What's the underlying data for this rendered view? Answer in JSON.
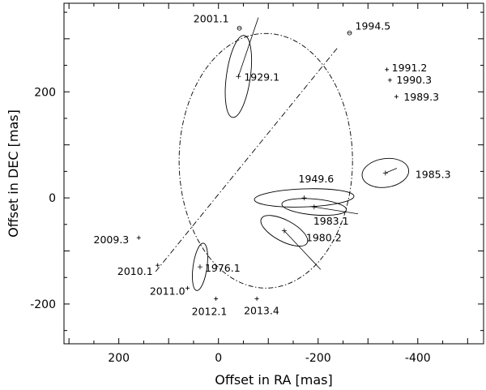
{
  "chart_data": {
    "type": "scatter",
    "title": "",
    "xlabel": "Offset in RA [mas]",
    "ylabel": "Offset in DEC [mas]",
    "xlim": [
      310,
      -532
    ],
    "ylim": [
      -275,
      367
    ],
    "x_reversed": true,
    "grid": false,
    "xticks": [
      200,
      0,
      -200,
      -400
    ],
    "yticks": [
      200,
      0,
      -200
    ],
    "xtick_labels": [
      "200",
      "0",
      "-200",
      "-400"
    ],
    "ytick_labels": [
      "200",
      "0",
      "-200"
    ],
    "orbit": {
      "center": [
        -95,
        70
      ],
      "semi_axes": [
        174,
        240
      ],
      "rotation_deg": 0,
      "style": "dash-dot"
    },
    "line_of_nodes": [
      [
        -238,
        282
      ],
      [
        127,
        -140
      ]
    ],
    "measurements": [
      {
        "label": "1929.1",
        "ra": -40,
        "dec": 229,
        "ellipse": {
          "rx": 24,
          "ry": 78,
          "rot": 8
        },
        "orbit_point": [
          -80,
          340
        ]
      },
      {
        "label": "1949.6",
        "ra": -172,
        "dec": 0,
        "ellipse": {
          "rx": 100,
          "ry": 17,
          "rot": -2
        },
        "orbit_point": [
          -172,
          0
        ]
      },
      {
        "label": "1976.1",
        "ra": 37,
        "dec": -130,
        "ellipse": {
          "rx": 14,
          "ry": 45,
          "rot": 8
        },
        "orbit_point": [
          37,
          -130
        ]
      },
      {
        "label": "1980.2",
        "ra": -132,
        "dec": -62,
        "ellipse": {
          "rx": 52,
          "ry": 20,
          "rot": 28
        },
        "orbit_point": [
          -205,
          -135
        ]
      },
      {
        "label": "1983.1",
        "ra": -192,
        "dec": -17,
        "ellipse": {
          "rx": 65,
          "ry": 15,
          "rot": 5
        },
        "orbit_point": [
          -280,
          -30
        ]
      },
      {
        "label": "1985.3",
        "ra": -335,
        "dec": 47,
        "ellipse": {
          "rx": 47,
          "ry": 27,
          "rot": -8
        },
        "orbit_point": [
          -358,
          56
        ]
      }
    ],
    "epoch_markers": [
      {
        "label": "2001.1",
        "ra": -42,
        "dec": 320,
        "marker": "circle"
      },
      {
        "label": "1994.5",
        "ra": -263,
        "dec": 311,
        "marker": "circle"
      },
      {
        "label": "1991.2",
        "ra": -338,
        "dec": 242,
        "marker": "tick"
      },
      {
        "label": "1990.3",
        "ra": -344,
        "dec": 222,
        "marker": "tick"
      },
      {
        "label": "1989.3",
        "ra": -357,
        "dec": 191,
        "marker": "tick"
      },
      {
        "label": "2009.3",
        "ra": 160,
        "dec": -75,
        "marker": "tick"
      },
      {
        "label": "2010.1",
        "ra": 122,
        "dec": -127,
        "marker": "tick"
      },
      {
        "label": "2011.0",
        "ra": 62,
        "dec": -170,
        "marker": "tick"
      },
      {
        "label": "2012.1",
        "ra": 5,
        "dec": -190,
        "marker": "tick"
      },
      {
        "label": "2013.4",
        "ra": -77,
        "dec": -190,
        "marker": "tick"
      }
    ]
  }
}
